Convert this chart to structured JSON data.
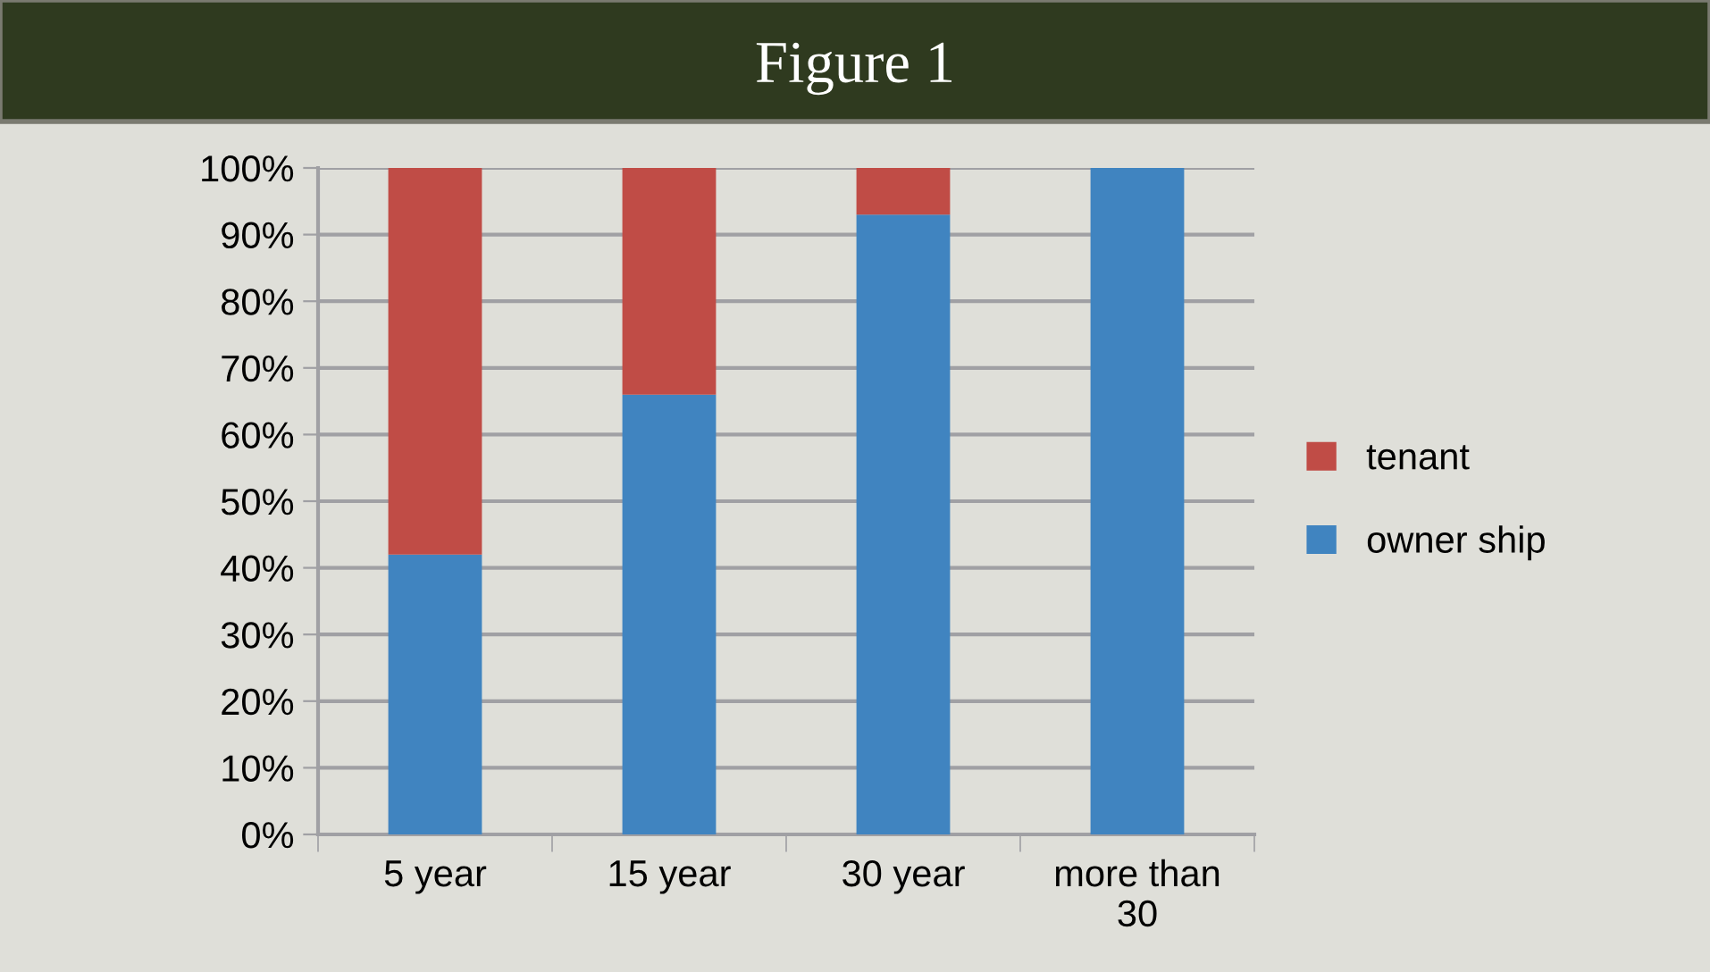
{
  "chart_data": {
    "type": "bar",
    "title": "Figure 1",
    "stacked": true,
    "categories": [
      "5 year",
      "15 year",
      "30 year",
      "more than 30"
    ],
    "series": [
      {
        "name": "owner ship",
        "color": "#4084c0",
        "values": [
          42,
          66,
          93,
          100
        ]
      },
      {
        "name": "tenant",
        "color": "#c04c46",
        "values": [
          58,
          34,
          7,
          0
        ]
      }
    ],
    "ylim": [
      0,
      100
    ],
    "yticks": [
      {
        "value": 0,
        "label": "0%"
      },
      {
        "value": 10,
        "label": "10%"
      },
      {
        "value": 20,
        "label": "20%"
      },
      {
        "value": 30,
        "label": "30%"
      },
      {
        "value": 40,
        "label": "40%"
      },
      {
        "value": 50,
        "label": "50%"
      },
      {
        "value": 60,
        "label": "60%"
      },
      {
        "value": 70,
        "label": "70%"
      },
      {
        "value": 80,
        "label": "80%"
      },
      {
        "value": 90,
        "label": "90%"
      },
      {
        "value": 100,
        "label": "100%"
      }
    ],
    "grid": "y",
    "legend": "right"
  }
}
